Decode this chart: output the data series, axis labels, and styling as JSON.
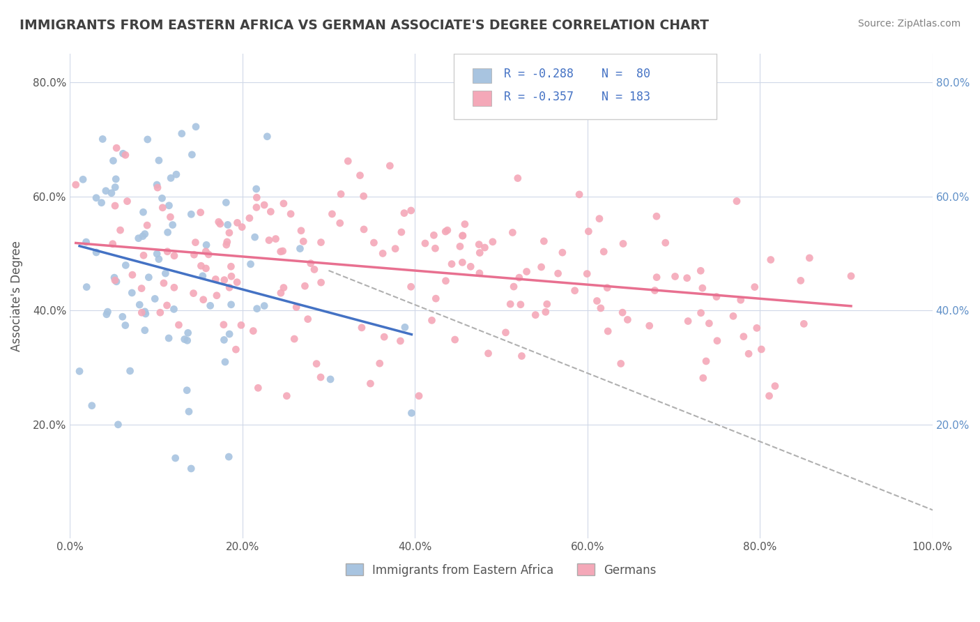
{
  "title": "IMMIGRANTS FROM EASTERN AFRICA VS GERMAN ASSOCIATE'S DEGREE CORRELATION CHART",
  "source": "Source: ZipAtlas.com",
  "xlabel": "",
  "ylabel": "Associate's Degree",
  "legend_labels": [
    "Immigrants from Eastern Africa",
    "Germans"
  ],
  "r_blue": -0.288,
  "n_blue": 80,
  "r_pink": -0.357,
  "n_pink": 183,
  "xlim": [
    0,
    1.0
  ],
  "ylim": [
    0,
    0.85
  ],
  "xtick_labels": [
    "0.0%",
    "20.0%",
    "40.0%",
    "60.0%",
    "80.0%",
    "100.0%"
  ],
  "xtick_vals": [
    0.0,
    0.2,
    0.4,
    0.6,
    0.8,
    1.0
  ],
  "ytick_labels": [
    "20.0%",
    "40.0%",
    "60.0%",
    "80.0%"
  ],
  "ytick_vals": [
    0.2,
    0.4,
    0.6,
    0.8
  ],
  "color_blue": "#a8c4e0",
  "color_pink": "#f4a8b8",
  "line_blue": "#4472c4",
  "line_pink": "#e87090",
  "line_dashed": "#b0b0b0",
  "background_color": "#ffffff",
  "title_color": "#404040",
  "source_color": "#808080",
  "legend_text_color": "#4472c4",
  "grid_color": "#d0d8e8",
  "seed_blue": 42,
  "seed_pink": 99
}
